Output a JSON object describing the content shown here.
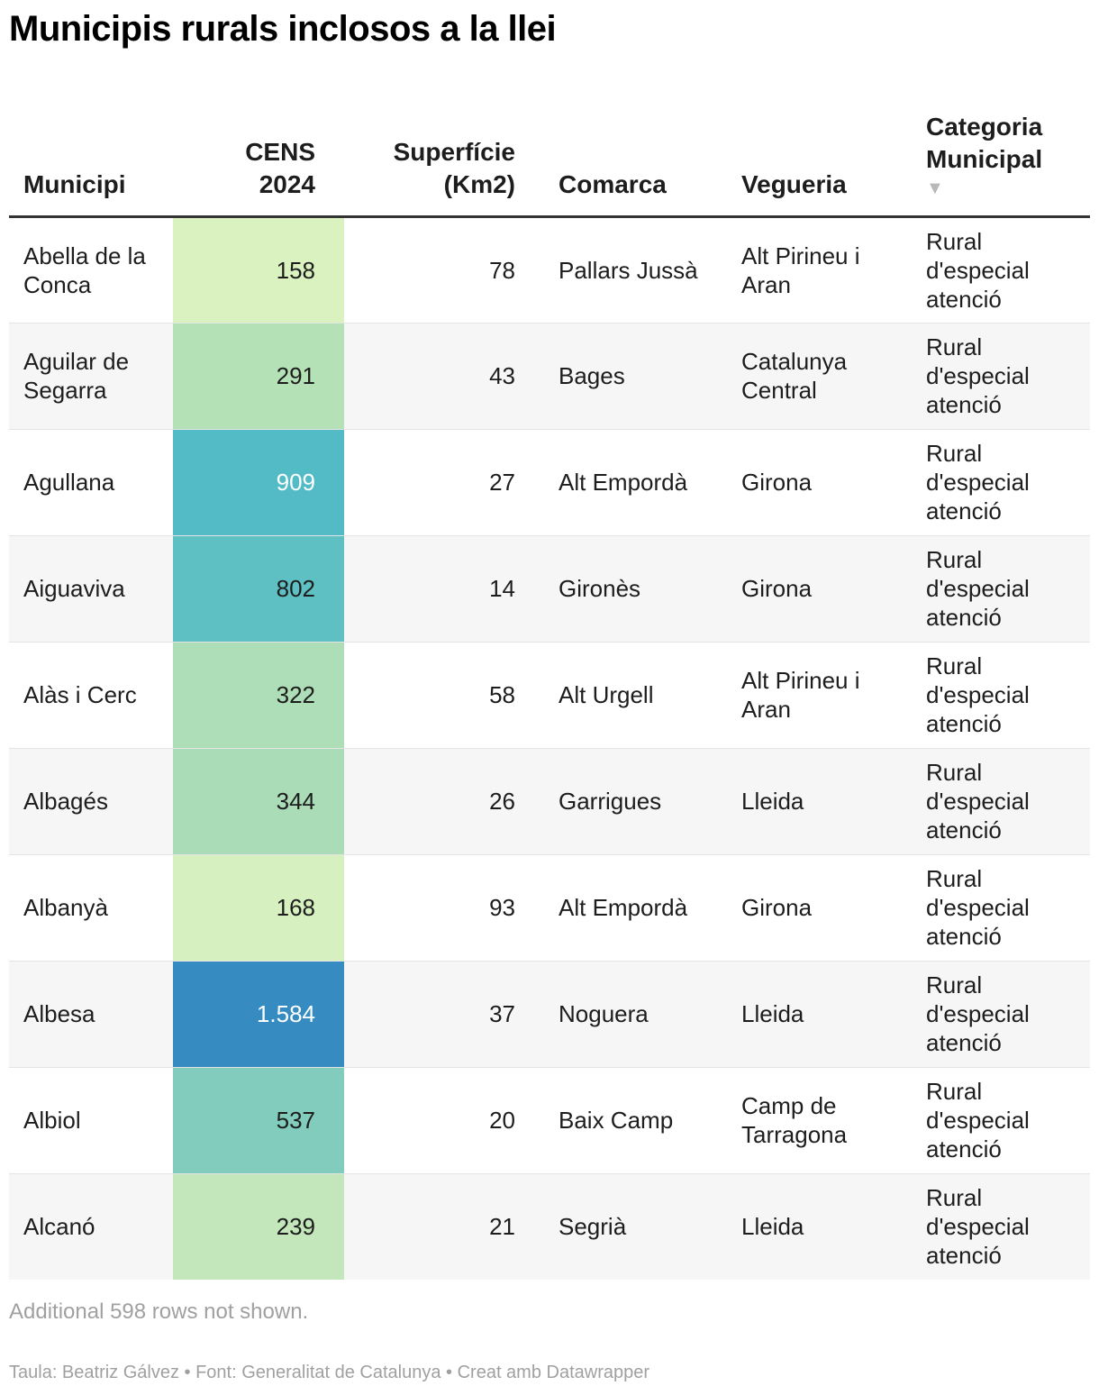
{
  "title": "Municipis rurals inclosos a la llei",
  "chart_data": {
    "type": "table",
    "columns": [
      {
        "key": "municipi",
        "label": "Municipi",
        "align": "left"
      },
      {
        "key": "cens",
        "label": "CENS\n2024",
        "align": "right"
      },
      {
        "key": "superficie",
        "label": "Superfície\n(Km2)",
        "align": "right"
      },
      {
        "key": "comarca",
        "label": "Comarca",
        "align": "left"
      },
      {
        "key": "vegueria",
        "label": "Vegueria",
        "align": "left"
      },
      {
        "key": "categoria",
        "label": "Categoria\nMunicipal",
        "align": "left",
        "sort_icon": "▼"
      }
    ],
    "rows": [
      {
        "municipi": "Abella de la Conca",
        "cens": 158,
        "superficie": 78,
        "comarca": "Pallars Jussà",
        "vegueria": "Alt Pirineu i Aran",
        "categoria": "Rural d'especial atenció"
      },
      {
        "municipi": "Aguilar de Segarra",
        "cens": 291,
        "superficie": 43,
        "comarca": "Bages",
        "vegueria": "Catalunya Central",
        "categoria": "Rural d'especial atenció"
      },
      {
        "municipi": "Agullana",
        "cens": 909,
        "superficie": 27,
        "comarca": "Alt Empordà",
        "vegueria": "Girona",
        "categoria": "Rural d'especial atenció"
      },
      {
        "municipi": "Aiguaviva",
        "cens": 802,
        "superficie": 14,
        "comarca": "Gironès",
        "vegueria": "Girona",
        "categoria": "Rural d'especial atenció"
      },
      {
        "municipi": "Alàs i Cerc",
        "cens": 322,
        "superficie": 58,
        "comarca": "Alt Urgell",
        "vegueria": "Alt Pirineu i Aran",
        "categoria": "Rural d'especial atenció"
      },
      {
        "municipi": "Albagés",
        "cens": 344,
        "superficie": 26,
        "comarca": "Garrigues",
        "vegueria": "Lleida",
        "categoria": "Rural d'especial atenció"
      },
      {
        "municipi": "Albanyà",
        "cens": 168,
        "superficie": 93,
        "comarca": "Alt Empordà",
        "vegueria": "Girona",
        "categoria": "Rural d'especial atenció"
      },
      {
        "municipi": "Albesa",
        "cens": 1584,
        "superficie": 37,
        "comarca": "Noguera",
        "vegueria": "Lleida",
        "categoria": "Rural d'especial atenció"
      },
      {
        "municipi": "Albiol",
        "cens": 537,
        "superficie": 20,
        "comarca": "Baix Camp",
        "vegueria": "Camp de Tarragona",
        "categoria": "Rural d'especial atenció"
      },
      {
        "municipi": "Alcanó",
        "cens": 239,
        "superficie": 21,
        "comarca": "Segrià",
        "vegueria": "Lleida",
        "categoria": "Rural d'especial atenció"
      }
    ],
    "heatmap_column": "cens",
    "heatmap_colors": [
      "#dcf2c1",
      "#b2e0b6",
      "#7ecbbc",
      "#52bcc6",
      "#358bc0"
    ],
    "heatmap_stops": [
      150,
      300,
      550,
      900,
      1600
    ],
    "dark_text_color": "#1d1d1d",
    "light_text_color": "#ffffff"
  },
  "note": "Additional 598 rows not shown.",
  "footer": "Taula: Beatriz Gálvez • Font: Generalitat de Catalunya • Creat amb Datawrapper"
}
